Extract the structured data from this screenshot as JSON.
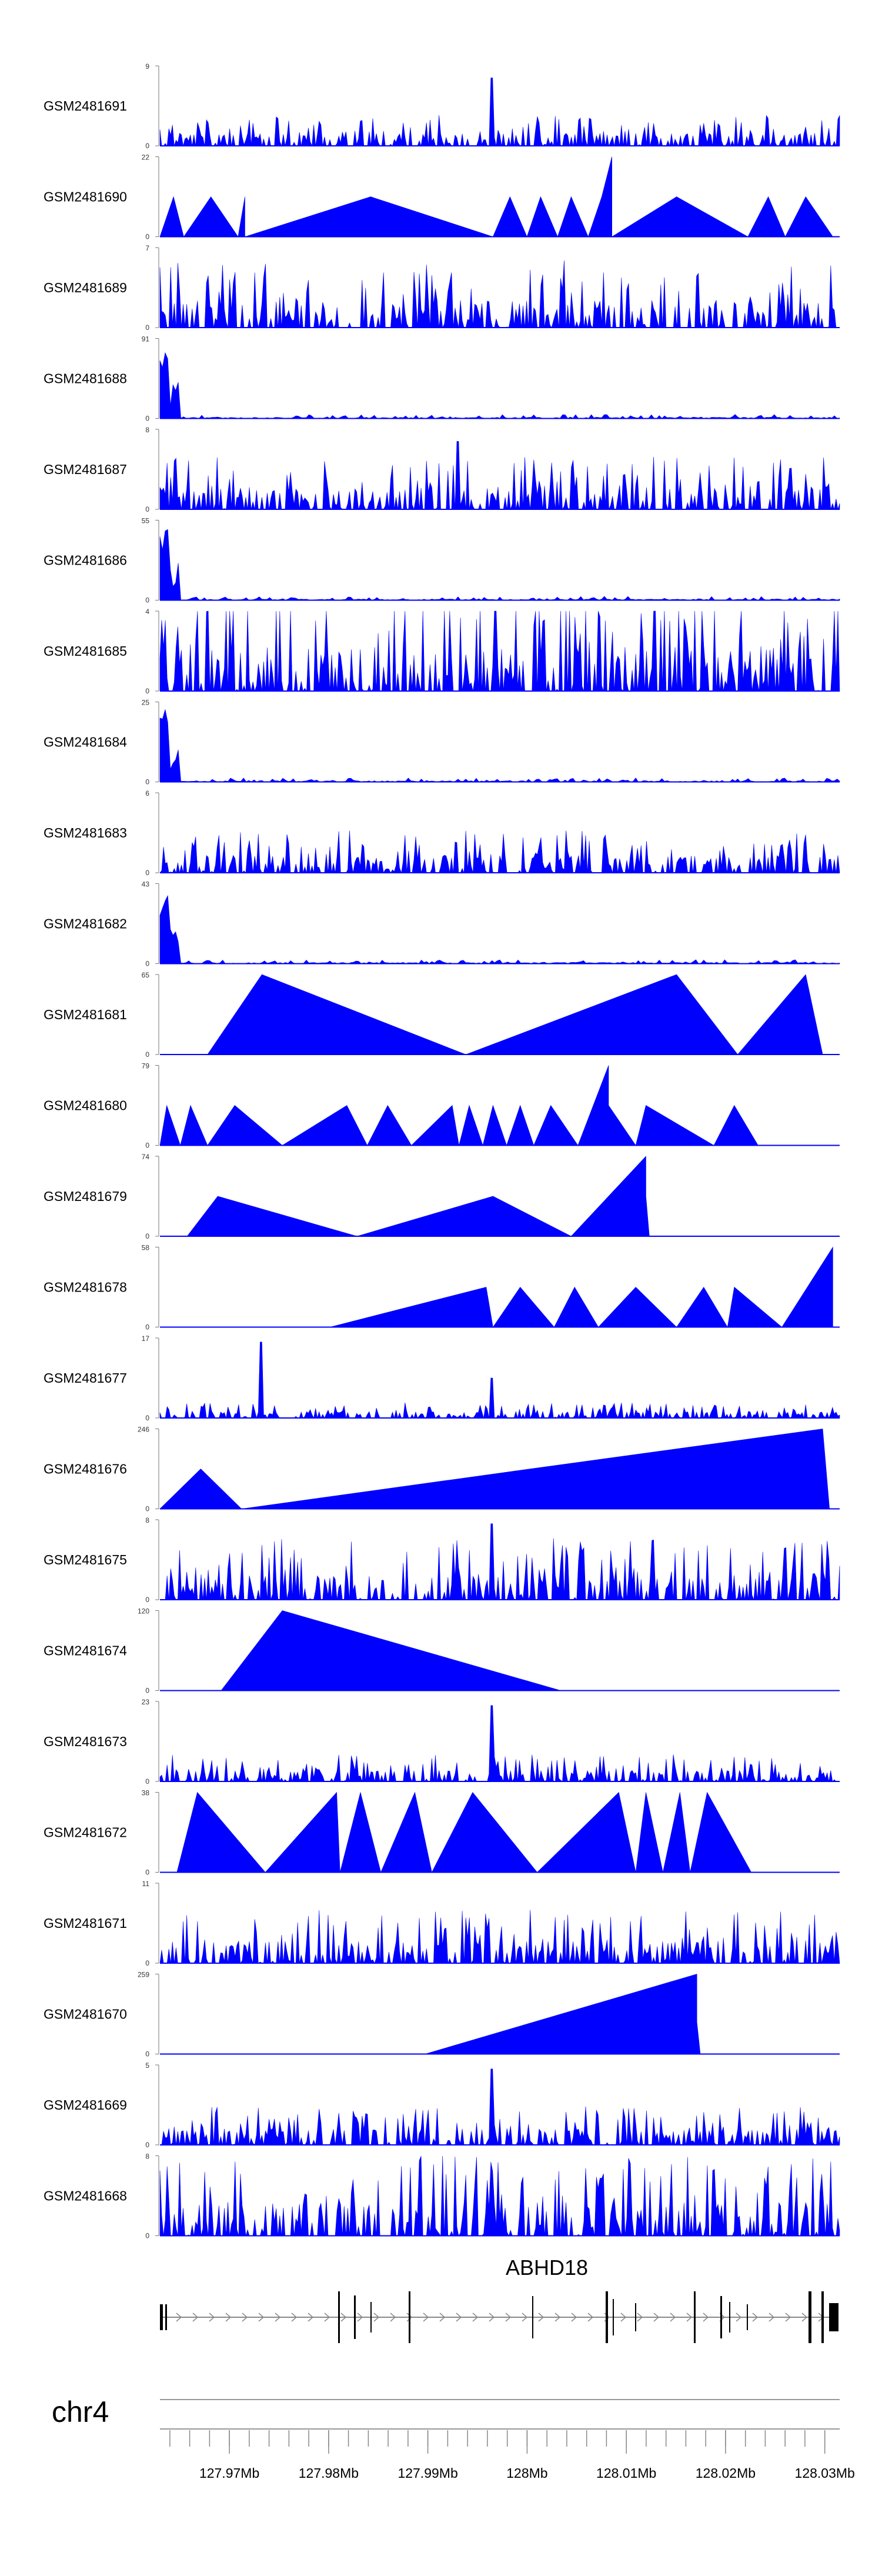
{
  "chart_data": {
    "type": "area",
    "genome": {
      "chromosome": "chr4",
      "gene": "ABHD18",
      "x_range_mb": [
        127.963,
        128.0315
      ],
      "axis_ticks": [
        "127.97Mb",
        "127.98Mb",
        "127.99Mb",
        "128Mb",
        "128.01Mb",
        "128.02Mb",
        "128.03Mb"
      ],
      "axis_tick_values": [
        127.97,
        127.98,
        127.99,
        128.0,
        128.01,
        128.02,
        128.03
      ]
    },
    "fill_color": "#0000ff",
    "tracks": [
      {
        "name": "GSM2481691",
        "ymax": 9,
        "pattern": "dense",
        "seed": 11,
        "base": 0.16,
        "spikes": [
          [
            0.488,
            0.85
          ]
        ]
      },
      {
        "name": "GSM2481690",
        "ymax": 22,
        "pattern": "peaks",
        "peaks": [
          [
            0.0,
            0.02,
            0
          ],
          [
            0.02,
            0.035,
            0.5
          ],
          [
            0.035,
            0.075,
            0
          ],
          [
            0.075,
            0.115,
            0.5
          ],
          [
            0.115,
            0.125,
            0
          ],
          [
            0.125,
            0.125,
            0.5
          ],
          [
            0.125,
            0.31,
            0
          ],
          [
            0.31,
            0.49,
            0.5
          ],
          [
            0.49,
            0.515,
            0
          ],
          [
            0.515,
            0.54,
            0.5
          ],
          [
            0.54,
            0.56,
            0
          ],
          [
            0.56,
            0.585,
            0.5
          ],
          [
            0.585,
            0.605,
            0
          ],
          [
            0.605,
            0.63,
            0.5
          ],
          [
            0.63,
            0.65,
            0
          ],
          [
            0.65,
            0.665,
            0.5
          ],
          [
            0.665,
            0.66,
            1.0
          ],
          [
            0.665,
            0.76,
            0
          ],
          [
            0.76,
            0.865,
            0.5
          ],
          [
            0.865,
            0.895,
            0
          ],
          [
            0.895,
            0.92,
            0.5
          ],
          [
            0.92,
            0.95,
            0
          ],
          [
            0.95,
            0.99,
            0.5
          ]
        ]
      },
      {
        "name": "GSM2481689",
        "ymax": 7,
        "pattern": "dense",
        "seed": 23,
        "base": 0.35,
        "spikes": []
      },
      {
        "name": "GSM2481688",
        "ymax": 91,
        "pattern": "early",
        "seed": 31,
        "spike_height": 1.0
      },
      {
        "name": "GSM2481687",
        "ymax": 8,
        "pattern": "dense",
        "seed": 37,
        "base": 0.28,
        "spikes": [
          [
            0.438,
            0.85
          ]
        ]
      },
      {
        "name": "GSM2481686",
        "ymax": 55,
        "pattern": "early",
        "seed": 41,
        "spike_height": 1.0
      },
      {
        "name": "GSM2481685",
        "ymax": 4,
        "pattern": "dense",
        "seed": 43,
        "base": 0.55,
        "spikes": []
      },
      {
        "name": "GSM2481684",
        "ymax": 25,
        "pattern": "early",
        "seed": 47,
        "spike_height": 0.95
      },
      {
        "name": "GSM2481683",
        "ymax": 6,
        "pattern": "dense",
        "seed": 53,
        "base": 0.22,
        "spikes": []
      },
      {
        "name": "GSM2481682",
        "ymax": 43,
        "pattern": "early",
        "seed": 59,
        "spike_height": 0.95
      },
      {
        "name": "GSM2481681",
        "ymax": 65,
        "pattern": "peaks",
        "peaks": [
          [
            0.07,
            0.15,
            0
          ],
          [
            0.15,
            0.45,
            1.0
          ],
          [
            0.45,
            0.76,
            0
          ],
          [
            0.76,
            0.85,
            1.0
          ],
          [
            0.85,
            0.95,
            0
          ],
          [
            0.95,
            0.975,
            1.0
          ]
        ]
      },
      {
        "name": "GSM2481680",
        "ymax": 79,
        "pattern": "peaks",
        "peaks": [
          [
            0.0,
            0.01,
            0
          ],
          [
            0.01,
            0.03,
            0.5
          ],
          [
            0.03,
            0.045,
            0
          ],
          [
            0.045,
            0.07,
            0.5
          ],
          [
            0.07,
            0.11,
            0
          ],
          [
            0.11,
            0.18,
            0.5
          ],
          [
            0.18,
            0.275,
            0
          ],
          [
            0.275,
            0.305,
            0.5
          ],
          [
            0.305,
            0.335,
            0
          ],
          [
            0.335,
            0.37,
            0.5
          ],
          [
            0.37,
            0.43,
            0
          ],
          [
            0.43,
            0.44,
            0.5
          ],
          [
            0.44,
            0.455,
            0
          ],
          [
            0.455,
            0.475,
            0.5
          ],
          [
            0.475,
            0.49,
            0
          ],
          [
            0.49,
            0.51,
            0.5
          ],
          [
            0.51,
            0.53,
            0
          ],
          [
            0.53,
            0.55,
            0.5
          ],
          [
            0.55,
            0.575,
            0
          ],
          [
            0.575,
            0.615,
            0.5
          ],
          [
            0.615,
            0.66,
            0
          ],
          [
            0.66,
            0.66,
            1.0
          ],
          [
            0.66,
            0.7,
            0.5
          ],
          [
            0.7,
            0.715,
            0
          ],
          [
            0.715,
            0.815,
            0.5
          ],
          [
            0.815,
            0.845,
            0
          ],
          [
            0.845,
            0.88,
            0.5
          ],
          [
            0.88,
            0.93,
            0
          ]
        ]
      },
      {
        "name": "GSM2481679",
        "ymax": 74,
        "pattern": "peaks",
        "peaks": [
          [
            0.04,
            0.085,
            0
          ],
          [
            0.085,
            0.29,
            0.5
          ],
          [
            0.29,
            0.49,
            0
          ],
          [
            0.49,
            0.605,
            0.5
          ],
          [
            0.605,
            0.715,
            0
          ],
          [
            0.715,
            0.715,
            1.0
          ],
          [
            0.715,
            0.72,
            0.5
          ],
          [
            0.72,
            0.86,
            0
          ]
        ]
      },
      {
        "name": "GSM2481678",
        "ymax": 58,
        "pattern": "peaks",
        "peaks": [
          [
            0.25,
            0.48,
            0
          ],
          [
            0.48,
            0.49,
            0.5
          ],
          [
            0.49,
            0.53,
            0
          ],
          [
            0.53,
            0.58,
            0.5
          ],
          [
            0.58,
            0.61,
            0
          ],
          [
            0.61,
            0.645,
            0.5
          ],
          [
            0.645,
            0.7,
            0
          ],
          [
            0.7,
            0.76,
            0.5
          ],
          [
            0.76,
            0.8,
            0
          ],
          [
            0.8,
            0.835,
            0.5
          ],
          [
            0.835,
            0.845,
            0
          ],
          [
            0.845,
            0.915,
            0.5
          ],
          [
            0.915,
            0.99,
            0
          ],
          [
            0.99,
            0.99,
            1.0
          ],
          [
            0.99,
            0.995,
            0
          ]
        ]
      },
      {
        "name": "GSM2481677",
        "ymax": 17,
        "pattern": "dense",
        "seed": 67,
        "base": 0.08,
        "spikes": [
          [
            0.149,
            0.95
          ],
          [
            0.488,
            0.5
          ]
        ]
      },
      {
        "name": "GSM2481676",
        "ymax": 246,
        "pattern": "peaks",
        "peaks": [
          [
            0.0,
            0.06,
            0
          ],
          [
            0.06,
            0.12,
            0.5
          ],
          [
            0.12,
            0.545,
            0
          ],
          [
            0.545,
            0.975,
            0.5
          ],
          [
            0.975,
            0.985,
            1.0
          ],
          [
            0.985,
            0.99,
            0
          ]
        ]
      },
      {
        "name": "GSM2481675",
        "ymax": 8,
        "pattern": "dense",
        "seed": 71,
        "base": 0.32,
        "spikes": [
          [
            0.488,
            0.95
          ]
        ]
      },
      {
        "name": "GSM2481674",
        "ymax": 120,
        "pattern": "peaks",
        "peaks": [
          [
            0.09,
            0.18,
            0
          ],
          [
            0.18,
            0.59,
            1.0
          ],
          [
            0.59,
            0.59,
            0
          ]
        ]
      },
      {
        "name": "GSM2481673",
        "ymax": 23,
        "pattern": "dense",
        "seed": 79,
        "base": 0.14,
        "spikes": [
          [
            0.488,
            0.95
          ]
        ]
      },
      {
        "name": "GSM2481672",
        "ymax": 38,
        "pattern": "peaks",
        "peaks": [
          [
            0.025,
            0.055,
            0
          ],
          [
            0.055,
            0.155,
            1.0
          ],
          [
            0.155,
            0.26,
            0
          ],
          [
            0.26,
            0.265,
            1.0
          ],
          [
            0.265,
            0.295,
            0
          ],
          [
            0.295,
            0.325,
            1.0
          ],
          [
            0.325,
            0.375,
            0
          ],
          [
            0.375,
            0.4,
            1.0
          ],
          [
            0.4,
            0.46,
            0
          ],
          [
            0.46,
            0.555,
            1.0
          ],
          [
            0.555,
            0.675,
            0
          ],
          [
            0.675,
            0.7,
            1.0
          ],
          [
            0.7,
            0.715,
            0
          ],
          [
            0.715,
            0.74,
            1.0
          ],
          [
            0.74,
            0.765,
            0
          ],
          [
            0.765,
            0.78,
            1.0
          ],
          [
            0.78,
            0.805,
            0
          ],
          [
            0.805,
            0.87,
            1.0
          ],
          [
            0.87,
            0.935,
            0
          ]
        ]
      },
      {
        "name": "GSM2481671",
        "ymax": 11,
        "pattern": "dense",
        "seed": 83,
        "base": 0.28,
        "spikes": []
      },
      {
        "name": "GSM2481670",
        "ymax": 259,
        "pattern": "peaks",
        "peaks": [
          [
            0.39,
            0.79,
            0
          ],
          [
            0.79,
            0.79,
            1.0
          ],
          [
            0.79,
            0.795,
            0.4
          ],
          [
            0.795,
            0.895,
            0
          ]
        ]
      },
      {
        "name": "GSM2481669",
        "ymax": 5,
        "pattern": "dense",
        "seed": 89,
        "base": 0.2,
        "spikes": [
          [
            0.488,
            0.95
          ]
        ]
      },
      {
        "name": "GSM2481668",
        "ymax": 8,
        "pattern": "dense",
        "seed": 97,
        "base": 0.42,
        "spikes": []
      }
    ]
  }
}
